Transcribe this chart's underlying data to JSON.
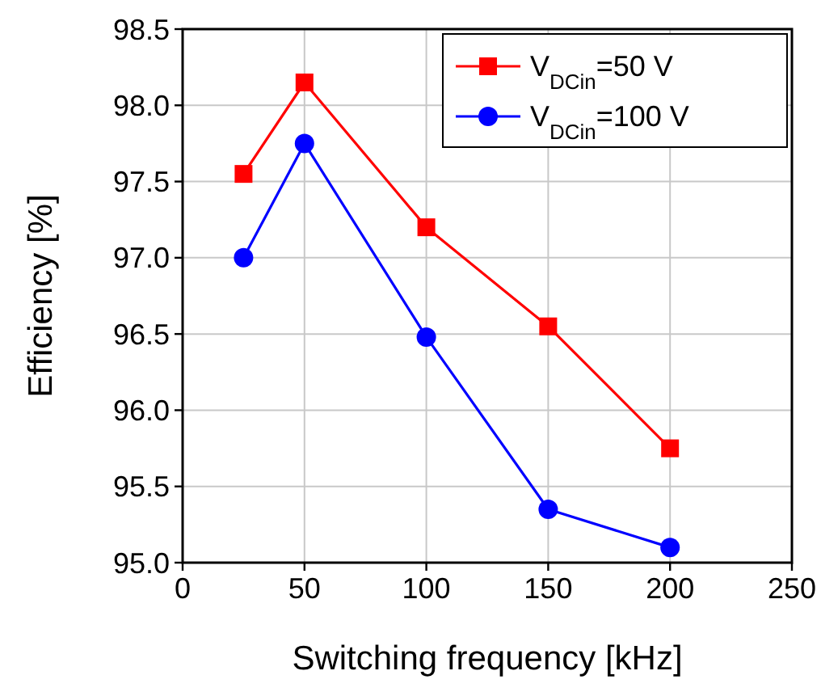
{
  "chart_data": {
    "type": "line",
    "xlabel": "Switching  frequency [kHz]",
    "ylabel": "Efficiency [%]",
    "xlim": [
      0,
      250
    ],
    "xticks": [
      0,
      50,
      100,
      150,
      200,
      250
    ],
    "ylim": [
      95,
      98.5
    ],
    "yticks": [
      {
        "value": 95,
        "label": "95.0"
      },
      95.5,
      {
        "value": 96,
        "label": "96.0"
      },
      96.5,
      {
        "value": 97,
        "label": "97.0"
      },
      97.5,
      {
        "value": 98,
        "label": "98.0"
      },
      98.5
    ],
    "grid": true,
    "legend": "top right",
    "line_style": "solid",
    "series": [
      {
        "name": "V$_{DCin}$=50 V",
        "color": "#ff0000",
        "marker": "square",
        "x": [
          25,
          50,
          100,
          150,
          200
        ],
        "values": [
          97.55,
          98.15,
          97.2,
          96.55,
          95.75
        ]
      },
      {
        "name": "V$_{DCin}$=100 V",
        "color": "#0000ff",
        "marker": "circle",
        "x": [
          25,
          50,
          100,
          150,
          200
        ],
        "values": [
          97.0,
          97.75,
          96.48,
          95.35,
          95.1
        ]
      }
    ]
  }
}
